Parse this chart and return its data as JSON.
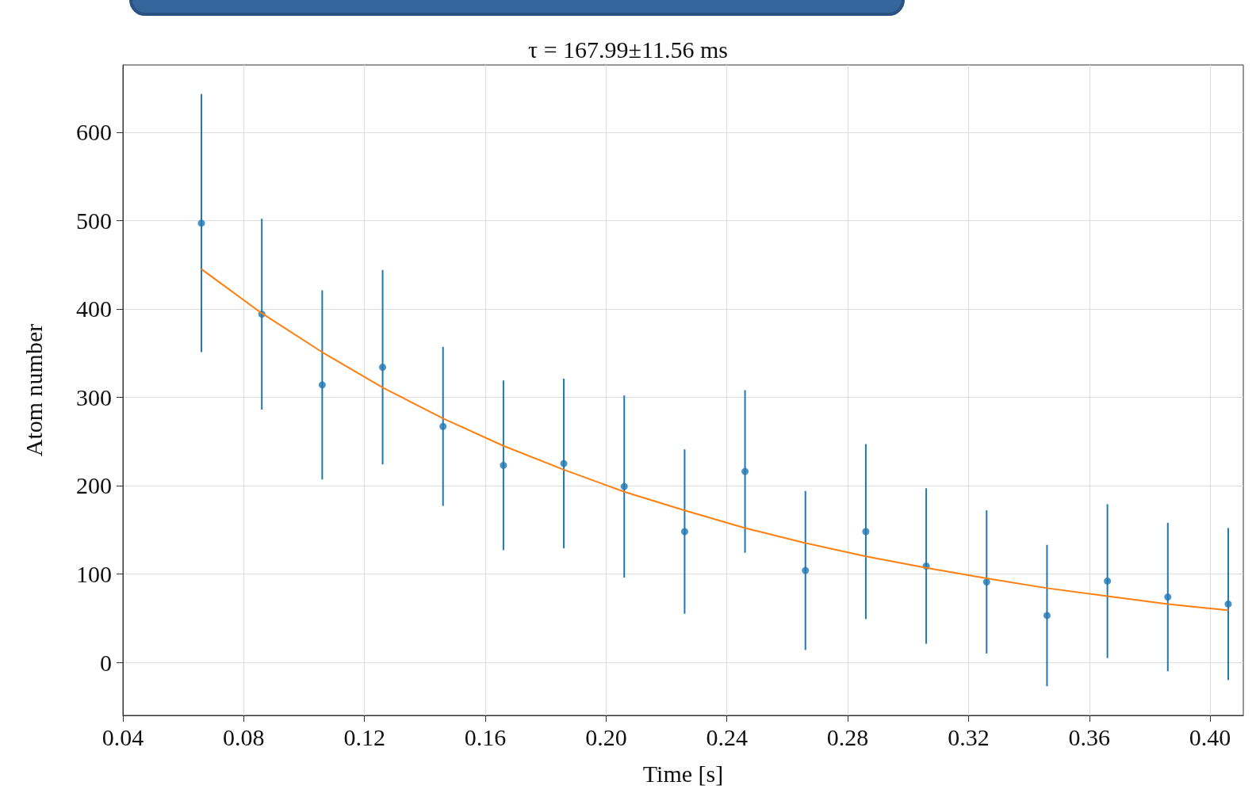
{
  "chart_data": {
    "type": "scatter",
    "title": "τ = 167.99±11.56 ms",
    "xlabel": "Time [s]",
    "ylabel": "Atom number",
    "xlim": [
      0.04,
      0.411
    ],
    "xticks": [
      0.04,
      0.08,
      0.12,
      0.16,
      {
        "value": 0.2,
        "label": "0.20"
      },
      0.24,
      0.28,
      0.32,
      0.36,
      {
        "value": 0.4,
        "label": "0.40"
      }
    ],
    "ylim": [
      -60,
      676
    ],
    "yticks": [
      0,
      100,
      200,
      300,
      400,
      500,
      600
    ],
    "grid": true,
    "legend": false,
    "series": [
      {
        "color": "#1f77b4",
        "marker": "circle",
        "x": [
          0.066,
          0.086,
          0.106,
          0.126,
          0.146,
          0.166,
          0.186,
          0.206,
          0.226,
          0.246,
          0.266,
          0.286,
          0.306,
          0.326,
          0.346,
          0.366,
          0.386,
          0.406
        ],
        "values": [
          497,
          394,
          314,
          334,
          267,
          223,
          225,
          199,
          148,
          216,
          104,
          148,
          109,
          91,
          53,
          92,
          74,
          66
        ],
        "errors": [
          146,
          108,
          107,
          110,
          90,
          96,
          96,
          103,
          93,
          92,
          90,
          99,
          88,
          81,
          80,
          87,
          84,
          86
        ]
      },
      {
        "type": "line",
        "color": "#ff7f0e",
        "marker": "none",
        "line_style": "solid",
        "x": [
          0.066,
          0.086,
          0.106,
          0.126,
          0.146,
          0.166,
          0.186,
          0.206,
          0.226,
          0.246,
          0.266,
          0.286,
          0.306,
          0.326,
          0.346,
          0.366,
          0.386,
          0.406
        ],
        "values": [
          445,
          395,
          351,
          311,
          276,
          245,
          218,
          193,
          172,
          152,
          135,
          120,
          107,
          95,
          84,
          75,
          66,
          59
        ]
      }
    ]
  }
}
